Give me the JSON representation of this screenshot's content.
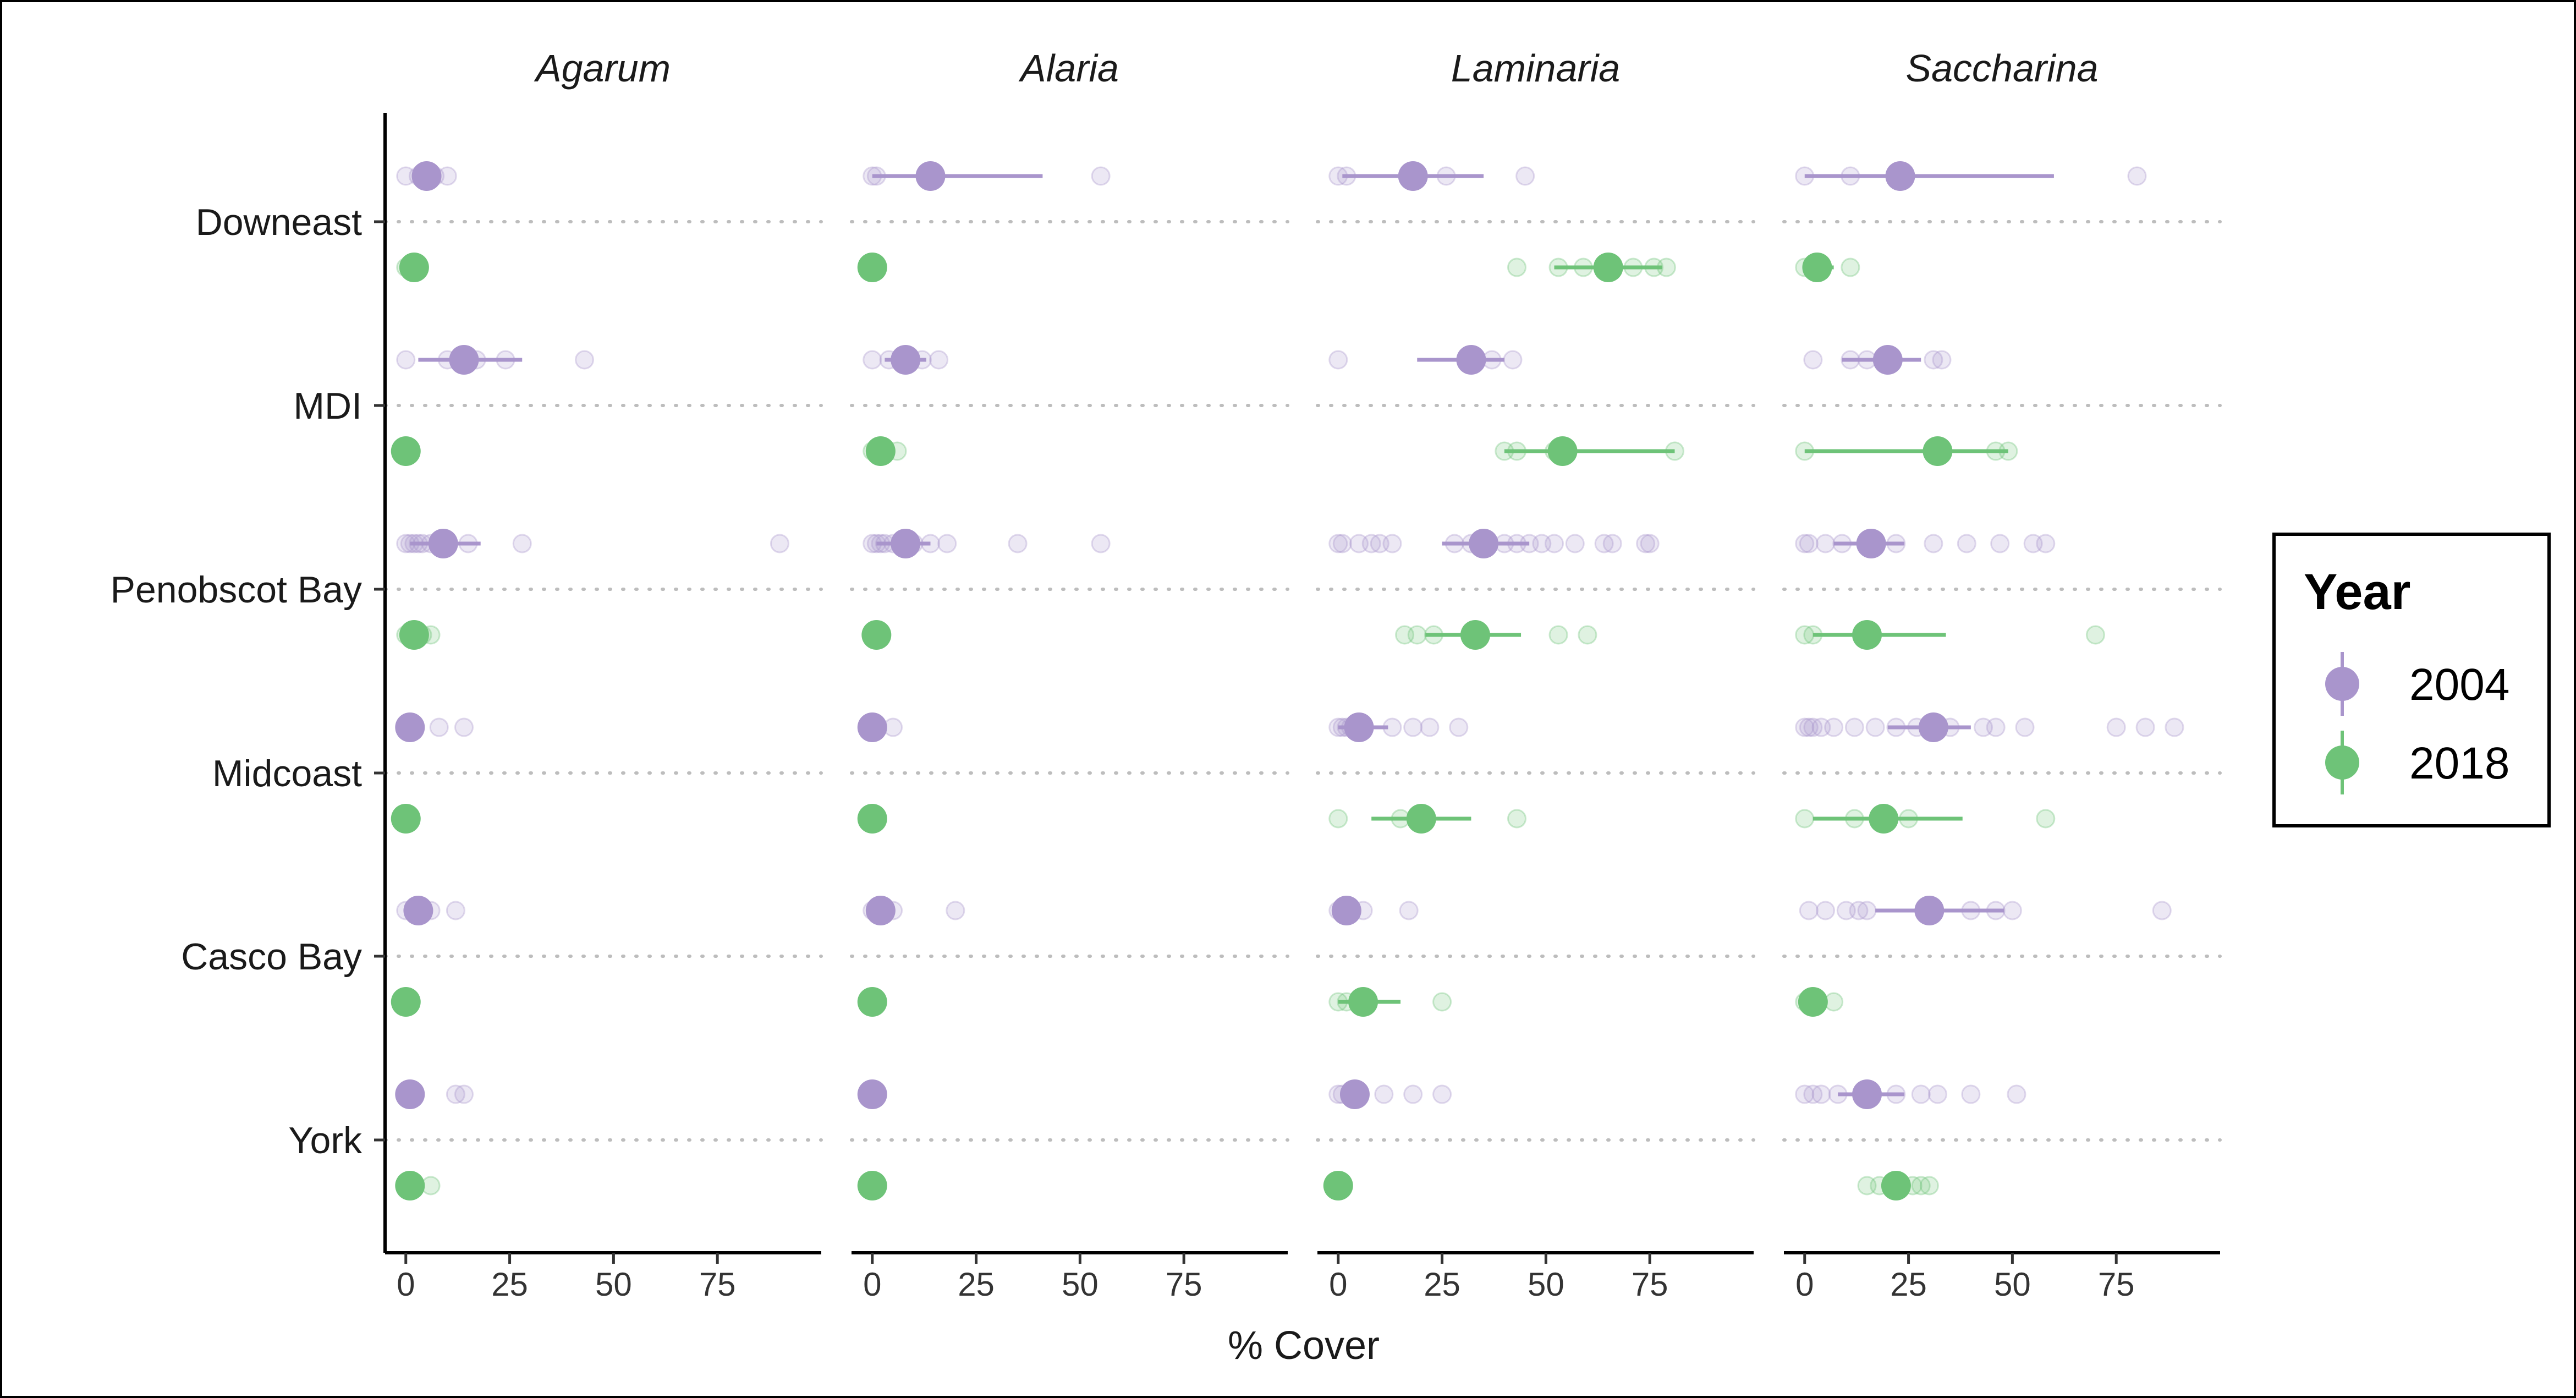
{
  "chart_data": {
    "type": "scatter",
    "title": "",
    "xlabel": "% Cover",
    "ylabel": "",
    "xlim": [
      -5,
      100
    ],
    "x_ticks": [
      "0",
      "25",
      "50",
      "75"
    ],
    "regions": [
      "Downeast",
      "MDI",
      "Penobscot Bay",
      "Midcoast",
      "Casco Bay",
      "York"
    ],
    "facets": [
      "Agarum",
      "Alaria",
      "Laminaria",
      "Saccharina"
    ],
    "grid": "dotted horizontal line at each region",
    "legend": {
      "title": "Year",
      "position": "right",
      "entries": [
        {
          "name": "2004",
          "color": "#a995cc"
        },
        {
          "name": "2018",
          "color": "#6ec378"
        }
      ]
    },
    "series": [
      {
        "name": "2004",
        "color": "#a995cc"
      },
      {
        "name": "2018",
        "color": "#6ec378"
      }
    ],
    "panels": [
      {
        "facet": "Agarum",
        "groups": [
          {
            "region": "Downeast",
            "year": "2004",
            "mean": 5,
            "lo": null,
            "hi": null,
            "obs": [
              0,
              3,
              7,
              10
            ]
          },
          {
            "region": "Downeast",
            "year": "2018",
            "mean": 2,
            "lo": null,
            "hi": null,
            "obs": [
              0,
              1,
              3
            ]
          },
          {
            "region": "MDI",
            "year": "2004",
            "mean": 14,
            "lo": 3,
            "hi": 28,
            "obs": [
              0,
              10,
              17,
              24,
              43
            ]
          },
          {
            "region": "MDI",
            "year": "2018",
            "mean": 0,
            "lo": null,
            "hi": null,
            "obs": [
              0,
              1
            ]
          },
          {
            "region": "Penobscot Bay",
            "year": "2004",
            "mean": 9,
            "lo": 1,
            "hi": 18,
            "obs": [
              0,
              1,
              2,
              3,
              4,
              6,
              8,
              15,
              28,
              90
            ]
          },
          {
            "region": "Penobscot Bay",
            "year": "2018",
            "mean": 2,
            "lo": null,
            "hi": null,
            "obs": [
              0,
              1,
              4,
              6
            ]
          },
          {
            "region": "Midcoast",
            "year": "2004",
            "mean": 1,
            "lo": null,
            "hi": null,
            "obs": [
              0,
              2,
              8,
              14
            ]
          },
          {
            "region": "Midcoast",
            "year": "2018",
            "mean": 0,
            "lo": null,
            "hi": null,
            "obs": [
              0
            ]
          },
          {
            "region": "Casco Bay",
            "year": "2004",
            "mean": 3,
            "lo": null,
            "hi": null,
            "obs": [
              0,
              2,
              6,
              12
            ]
          },
          {
            "region": "Casco Bay",
            "year": "2018",
            "mean": 0,
            "lo": null,
            "hi": null,
            "obs": [
              0
            ]
          },
          {
            "region": "York",
            "year": "2004",
            "mean": 1,
            "lo": null,
            "hi": null,
            "obs": [
              0,
              2,
              12,
              14
            ]
          },
          {
            "region": "York",
            "year": "2018",
            "mean": 1,
            "lo": null,
            "hi": null,
            "obs": [
              0,
              2,
              6
            ]
          }
        ]
      },
      {
        "facet": "Alaria",
        "groups": [
          {
            "region": "Downeast",
            "year": "2004",
            "mean": 14,
            "lo": 0,
            "hi": 41,
            "obs": [
              0,
              1,
              55
            ]
          },
          {
            "region": "Downeast",
            "year": "2018",
            "mean": 0,
            "lo": null,
            "hi": null,
            "obs": [
              0
            ]
          },
          {
            "region": "MDI",
            "year": "2004",
            "mean": 8,
            "lo": 3,
            "hi": 13,
            "obs": [
              0,
              4,
              8,
              12,
              16
            ]
          },
          {
            "region": "MDI",
            "year": "2018",
            "mean": 2,
            "lo": null,
            "hi": null,
            "obs": [
              0,
              2,
              6
            ]
          },
          {
            "region": "Penobscot Bay",
            "year": "2004",
            "mean": 8,
            "lo": 1,
            "hi": 14,
            "obs": [
              0,
              1,
              2,
              3,
              5,
              10,
              14,
              18,
              35,
              55
            ]
          },
          {
            "region": "Penobscot Bay",
            "year": "2018",
            "mean": 1,
            "lo": null,
            "hi": null,
            "obs": [
              0,
              2
            ]
          },
          {
            "region": "Midcoast",
            "year": "2004",
            "mean": 0,
            "lo": null,
            "hi": null,
            "obs": [
              0,
              5
            ]
          },
          {
            "region": "Midcoast",
            "year": "2018",
            "mean": 0,
            "lo": null,
            "hi": null,
            "obs": [
              0
            ]
          },
          {
            "region": "Casco Bay",
            "year": "2004",
            "mean": 2,
            "lo": null,
            "hi": null,
            "obs": [
              0,
              2,
              5,
              20
            ]
          },
          {
            "region": "Casco Bay",
            "year": "2018",
            "mean": 0,
            "lo": null,
            "hi": null,
            "obs": [
              0
            ]
          },
          {
            "region": "York",
            "year": "2004",
            "mean": 0,
            "lo": null,
            "hi": null,
            "obs": [
              0
            ]
          },
          {
            "region": "York",
            "year": "2018",
            "mean": 0,
            "lo": null,
            "hi": null,
            "obs": [
              0
            ]
          }
        ]
      },
      {
        "facet": "Laminaria",
        "groups": [
          {
            "region": "Downeast",
            "year": "2004",
            "mean": 18,
            "lo": 1,
            "hi": 35,
            "obs": [
              0,
              2,
              26,
              45
            ]
          },
          {
            "region": "Downeast",
            "year": "2018",
            "mean": 65,
            "lo": 52,
            "hi": 78,
            "obs": [
              43,
              53,
              59,
              64,
              71,
              76,
              79
            ]
          },
          {
            "region": "MDI",
            "year": "2004",
            "mean": 32,
            "lo": 19,
            "hi": 40,
            "obs": [
              0,
              37,
              42
            ]
          },
          {
            "region": "MDI",
            "year": "2018",
            "mean": 54,
            "lo": 40,
            "hi": 81,
            "obs": [
              40,
              43,
              52,
              81
            ]
          },
          {
            "region": "Penobscot Bay",
            "year": "2004",
            "mean": 35,
            "lo": 25,
            "hi": 46,
            "obs": [
              0,
              1,
              5,
              8,
              10,
              13,
              28,
              32,
              40,
              43,
              46,
              49,
              52,
              57,
              64,
              66,
              74,
              75
            ]
          },
          {
            "region": "Penobscot Bay",
            "year": "2018",
            "mean": 33,
            "lo": 21,
            "hi": 44,
            "obs": [
              16,
              19,
              23,
              53,
              60
            ]
          },
          {
            "region": "Midcoast",
            "year": "2004",
            "mean": 5,
            "lo": 0,
            "hi": 12,
            "obs": [
              0,
              1,
              2,
              3,
              13,
              18,
              22,
              29
            ]
          },
          {
            "region": "Midcoast",
            "year": "2018",
            "mean": 20,
            "lo": 8,
            "hi": 32,
            "obs": [
              0,
              15,
              43
            ]
          },
          {
            "region": "Casco Bay",
            "year": "2004",
            "mean": 2,
            "lo": null,
            "hi": null,
            "obs": [
              0,
              1,
              2,
              6,
              17
            ]
          },
          {
            "region": "Casco Bay",
            "year": "2018",
            "mean": 6,
            "lo": 0,
            "hi": 15,
            "obs": [
              0,
              2,
              25
            ]
          },
          {
            "region": "York",
            "year": "2004",
            "mean": 4,
            "lo": null,
            "hi": null,
            "obs": [
              0,
              1,
              11,
              18,
              25
            ]
          },
          {
            "region": "York",
            "year": "2018",
            "mean": 0,
            "lo": null,
            "hi": null,
            "obs": [
              0
            ]
          }
        ]
      },
      {
        "facet": "Saccharina",
        "groups": [
          {
            "region": "Downeast",
            "year": "2004",
            "mean": 23,
            "lo": 0,
            "hi": 60,
            "obs": [
              0,
              11,
              80
            ]
          },
          {
            "region": "Downeast",
            "year": "2018",
            "mean": 3,
            "lo": 0,
            "hi": 7,
            "obs": [
              0,
              2,
              11
            ]
          },
          {
            "region": "MDI",
            "year": "2004",
            "mean": 20,
            "lo": 9,
            "hi": 28,
            "obs": [
              2,
              11,
              15,
              31,
              33
            ]
          },
          {
            "region": "MDI",
            "year": "2018",
            "mean": 32,
            "lo": 0,
            "hi": 49,
            "obs": [
              0,
              46,
              49
            ]
          },
          {
            "region": "Penobscot Bay",
            "year": "2004",
            "mean": 16,
            "lo": 7,
            "hi": 24,
            "obs": [
              0,
              1,
              5,
              9,
              22,
              31,
              39,
              47,
              55,
              58
            ]
          },
          {
            "region": "Penobscot Bay",
            "year": "2018",
            "mean": 15,
            "lo": 2,
            "hi": 34,
            "obs": [
              0,
              2,
              70
            ]
          },
          {
            "region": "Midcoast",
            "year": "2004",
            "mean": 31,
            "lo": 20,
            "hi": 40,
            "obs": [
              0,
              1,
              2,
              4,
              7,
              12,
              17,
              22,
              27,
              35,
              43,
              46,
              53,
              75,
              82,
              89
            ]
          },
          {
            "region": "Midcoast",
            "year": "2018",
            "mean": 19,
            "lo": 2,
            "hi": 38,
            "obs": [
              0,
              12,
              25,
              58
            ]
          },
          {
            "region": "Casco Bay",
            "year": "2004",
            "mean": 30,
            "lo": 17,
            "hi": 48,
            "obs": [
              1,
              5,
              10,
              13,
              15,
              40,
              46,
              50,
              86
            ]
          },
          {
            "region": "Casco Bay",
            "year": "2018",
            "mean": 2,
            "lo": null,
            "hi": null,
            "obs": [
              0,
              2,
              7
            ]
          },
          {
            "region": "York",
            "year": "2004",
            "mean": 15,
            "lo": 8,
            "hi": 24,
            "obs": [
              0,
              2,
              4,
              8,
              22,
              28,
              32,
              40,
              51
            ]
          },
          {
            "region": "York",
            "year": "2018",
            "mean": 22,
            "lo": null,
            "hi": null,
            "obs": [
              15,
              18,
              26,
              28,
              30
            ]
          }
        ]
      }
    ]
  }
}
